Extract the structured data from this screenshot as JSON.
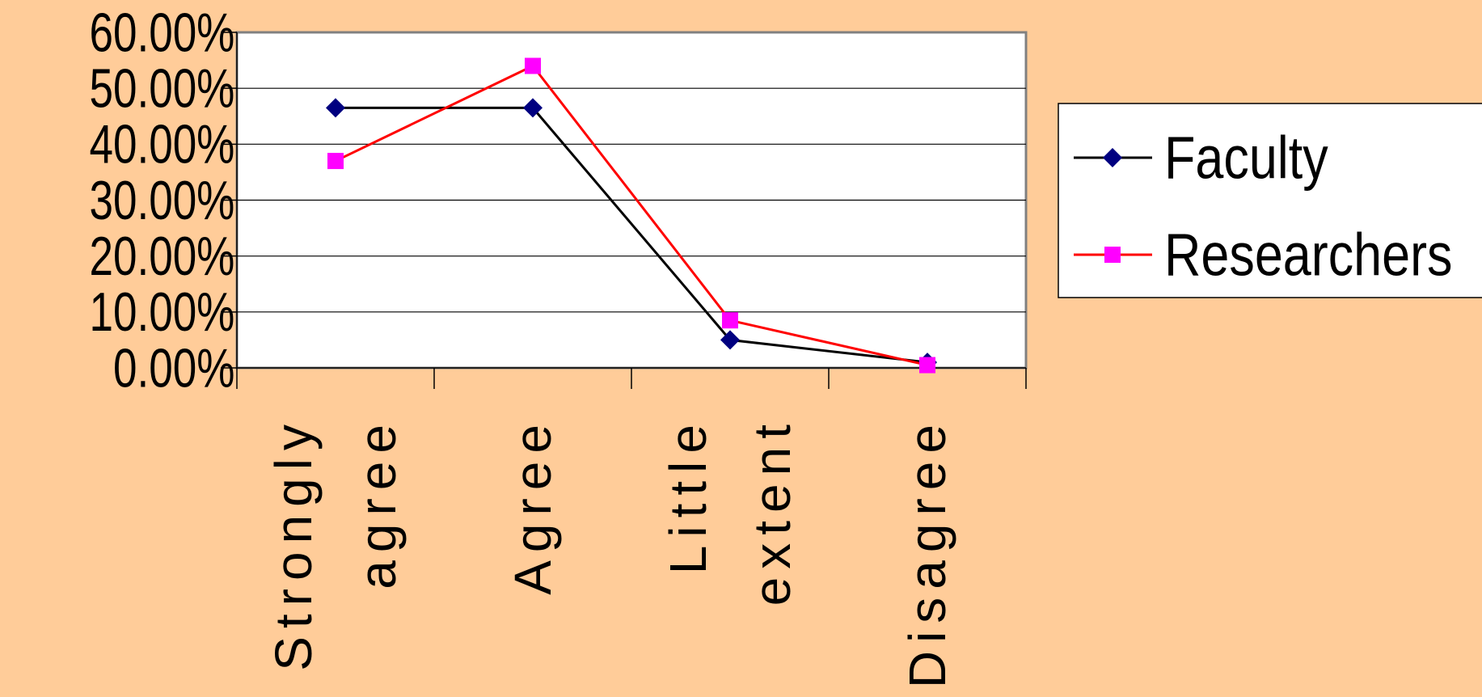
{
  "chart_data": {
    "type": "line",
    "categories": [
      [
        "Strongly",
        "agree"
      ],
      [
        "Agree"
      ],
      [
        "Little",
        "extent"
      ],
      [
        "Disagree"
      ]
    ],
    "series": [
      {
        "name": "Faculty",
        "values": [
          46.5,
          46.5,
          5.0,
          1.0
        ],
        "color": "#000000",
        "marker_color": "#000080",
        "marker": "diamond"
      },
      {
        "name": "Researchers",
        "values": [
          37.0,
          54.0,
          8.5,
          0.5
        ],
        "color": "#FF0000",
        "marker_color": "#FF00FF",
        "marker": "square"
      }
    ],
    "yticks": [
      "0.00%",
      "10.00%",
      "20.00%",
      "30.00%",
      "40.00%",
      "50.00%",
      "60.00%"
    ],
    "ylim": [
      0,
      60
    ],
    "title": "",
    "xlabel": "",
    "ylabel": "",
    "grid": true,
    "legend_position": "right",
    "colors": {
      "background": "#FFCC99",
      "plot_area": "#FFFFFF",
      "gridline": "#000000"
    }
  }
}
